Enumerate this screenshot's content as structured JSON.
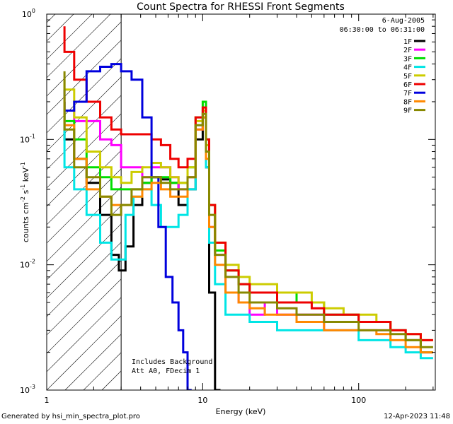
{
  "chart_data": {
    "type": "line",
    "title": "Count Spectra for RHESSI Front Segments",
    "xlabel": "Energy (keV)",
    "ylabel": "counts cm-2 s-1 keV-1",
    "xscale": "log",
    "yscale": "log",
    "xlim": [
      1,
      310
    ],
    "ylim": [
      0.001,
      1
    ],
    "x_ticks": [
      {
        "value": 1,
        "label": "1"
      },
      {
        "value": 10,
        "label": "10"
      },
      {
        "value": 100,
        "label": "100"
      }
    ],
    "y_ticks": [
      {
        "value": 1,
        "base": "10",
        "exp": "0"
      },
      {
        "value": 0.1,
        "base": "10",
        "exp": "-1"
      },
      {
        "value": 0.01,
        "base": "10",
        "exp": "-2"
      },
      {
        "value": 0.001,
        "base": "10",
        "exp": "-3"
      }
    ],
    "date": "6-Aug-2005",
    "time_range": "06:30:00 to 06:31:00",
    "hatched_region_xmax": 3,
    "notes": [
      "Includes Background",
      "Att A0, FDecim 1"
    ],
    "series": [
      {
        "name": "1F",
        "color": "#000000",
        "values": [
          [
            1.3,
            0.2
          ],
          [
            1.5,
            0.1
          ],
          [
            1.8,
            0.07
          ],
          [
            2.2,
            0.045
          ],
          [
            2.6,
            0.025
          ],
          [
            2.9,
            0.012
          ],
          [
            3.2,
            0.009
          ],
          [
            3.6,
            0.014
          ],
          [
            4.1,
            0.03
          ],
          [
            4.7,
            0.045
          ],
          [
            5.4,
            0.05
          ],
          [
            6.2,
            0.048
          ],
          [
            7,
            0.045
          ],
          [
            8,
            0.03
          ],
          [
            9,
            0.04
          ],
          [
            10,
            0.1
          ],
          [
            10.5,
            0.15
          ],
          [
            11,
            0.06
          ],
          [
            12,
            0.006
          ],
          [
            13,
            0.001
          ]
        ]
      },
      {
        "name": "2F",
        "color": "#ff00ff",
        "values": [
          [
            1.3,
            0.2
          ],
          [
            1.5,
            0.17
          ],
          [
            1.8,
            0.14
          ],
          [
            2.2,
            0.14
          ],
          [
            2.6,
            0.1
          ],
          [
            3,
            0.09
          ],
          [
            3.5,
            0.06
          ],
          [
            4.1,
            0.06
          ],
          [
            4.7,
            0.05
          ],
          [
            5.4,
            0.06
          ],
          [
            6.2,
            0.06
          ],
          [
            7,
            0.05
          ],
          [
            8,
            0.04
          ],
          [
            9,
            0.05
          ],
          [
            10,
            0.12
          ],
          [
            10.5,
            0.16
          ],
          [
            11,
            0.08
          ],
          [
            12,
            0.02
          ],
          [
            14,
            0.012
          ],
          [
            17,
            0.006
          ],
          [
            20,
            0.005
          ],
          [
            25,
            0.004
          ],
          [
            30,
            0.005
          ],
          [
            40,
            0.004
          ],
          [
            50,
            0.004
          ],
          [
            60,
            0.004
          ],
          [
            80,
            0.003
          ],
          [
            100,
            0.003
          ],
          [
            130,
            0.003
          ],
          [
            160,
            0.003
          ],
          [
            200,
            0.003
          ],
          [
            250,
            0.0025
          ],
          [
            300,
            0.002
          ]
        ]
      },
      {
        "name": "3F",
        "color": "#00dd00",
        "values": [
          [
            1.3,
            0.2
          ],
          [
            1.5,
            0.14
          ],
          [
            1.8,
            0.1
          ],
          [
            2.2,
            0.06
          ],
          [
            2.6,
            0.05
          ],
          [
            3,
            0.04
          ],
          [
            3.5,
            0.04
          ],
          [
            4.1,
            0.04
          ],
          [
            4.7,
            0.045
          ],
          [
            5.4,
            0.05
          ],
          [
            6.2,
            0.05
          ],
          [
            7,
            0.045
          ],
          [
            8,
            0.045
          ],
          [
            9,
            0.06
          ],
          [
            10,
            0.15
          ],
          [
            10.5,
            0.2
          ],
          [
            11,
            0.1
          ],
          [
            12,
            0.03
          ],
          [
            14,
            0.013
          ],
          [
            17,
            0.009
          ],
          [
            20,
            0.007
          ],
          [
            25,
            0.006
          ],
          [
            30,
            0.006
          ],
          [
            40,
            0.006
          ],
          [
            50,
            0.005
          ],
          [
            60,
            0.005
          ],
          [
            80,
            0.004
          ],
          [
            100,
            0.004
          ],
          [
            130,
            0.0035
          ],
          [
            160,
            0.0035
          ],
          [
            200,
            0.003
          ],
          [
            250,
            0.0025
          ],
          [
            300,
            0.002
          ]
        ]
      },
      {
        "name": "4F",
        "color": "#00e5e5",
        "values": [
          [
            1.3,
            0.17
          ],
          [
            1.5,
            0.06
          ],
          [
            1.8,
            0.04
          ],
          [
            2.2,
            0.025
          ],
          [
            2.6,
            0.015
          ],
          [
            2.9,
            0.011
          ],
          [
            3.2,
            0.011
          ],
          [
            3.6,
            0.025
          ],
          [
            4.1,
            0.035
          ],
          [
            4.7,
            0.04
          ],
          [
            5.4,
            0.03
          ],
          [
            6.2,
            0.02
          ],
          [
            7,
            0.02
          ],
          [
            8,
            0.025
          ],
          [
            9,
            0.04
          ],
          [
            10,
            0.13
          ],
          [
            10.5,
            0.15
          ],
          [
            11,
            0.06
          ],
          [
            12,
            0.015
          ],
          [
            14,
            0.007
          ],
          [
            17,
            0.004
          ],
          [
            20,
            0.004
          ],
          [
            25,
            0.0035
          ],
          [
            30,
            0.0035
          ],
          [
            40,
            0.003
          ],
          [
            50,
            0.003
          ],
          [
            60,
            0.003
          ],
          [
            80,
            0.003
          ],
          [
            100,
            0.003
          ],
          [
            130,
            0.0025
          ],
          [
            160,
            0.0025
          ],
          [
            200,
            0.0022
          ],
          [
            250,
            0.002
          ],
          [
            300,
            0.0018
          ]
        ]
      },
      {
        "name": "5F",
        "color": "#cccc00",
        "values": [
          [
            1.3,
            0.3
          ],
          [
            1.5,
            0.25
          ],
          [
            1.8,
            0.15
          ],
          [
            2.2,
            0.08
          ],
          [
            2.6,
            0.06
          ],
          [
            3,
            0.05
          ],
          [
            3.5,
            0.045
          ],
          [
            4.1,
            0.055
          ],
          [
            4.7,
            0.06
          ],
          [
            5.4,
            0.065
          ],
          [
            6.2,
            0.06
          ],
          [
            7,
            0.05
          ],
          [
            8,
            0.045
          ],
          [
            9,
            0.06
          ],
          [
            10,
            0.14
          ],
          [
            10.5,
            0.17
          ],
          [
            11,
            0.09
          ],
          [
            12,
            0.03
          ],
          [
            14,
            0.015
          ],
          [
            17,
            0.01
          ],
          [
            20,
            0.008
          ],
          [
            25,
            0.007
          ],
          [
            30,
            0.007
          ],
          [
            40,
            0.006
          ],
          [
            50,
            0.006
          ],
          [
            60,
            0.005
          ],
          [
            80,
            0.0045
          ],
          [
            100,
            0.004
          ],
          [
            130,
            0.004
          ],
          [
            160,
            0.0035
          ],
          [
            200,
            0.003
          ],
          [
            250,
            0.0028
          ],
          [
            300,
            0.0025
          ]
        ]
      },
      {
        "name": "6F",
        "color": "#ee0000",
        "values": [
          [
            1.3,
            0.8
          ],
          [
            1.5,
            0.5
          ],
          [
            1.8,
            0.3
          ],
          [
            2.2,
            0.2
          ],
          [
            2.6,
            0.15
          ],
          [
            3,
            0.12
          ],
          [
            3.5,
            0.11
          ],
          [
            4.1,
            0.11
          ],
          [
            4.7,
            0.11
          ],
          [
            5.4,
            0.1
          ],
          [
            6.2,
            0.09
          ],
          [
            7,
            0.07
          ],
          [
            8,
            0.06
          ],
          [
            9,
            0.07
          ],
          [
            10,
            0.15
          ],
          [
            10.5,
            0.18
          ],
          [
            11,
            0.1
          ],
          [
            12,
            0.03
          ],
          [
            14,
            0.015
          ],
          [
            17,
            0.009
          ],
          [
            20,
            0.007
          ],
          [
            25,
            0.006
          ],
          [
            30,
            0.006
          ],
          [
            40,
            0.005
          ],
          [
            50,
            0.005
          ],
          [
            60,
            0.0045
          ],
          [
            80,
            0.004
          ],
          [
            100,
            0.004
          ],
          [
            130,
            0.0035
          ],
          [
            160,
            0.0035
          ],
          [
            200,
            0.003
          ],
          [
            250,
            0.0028
          ],
          [
            300,
            0.0025
          ]
        ]
      },
      {
        "name": "7F",
        "color": "#0000dd",
        "values": [
          [
            1.3,
            0.25
          ],
          [
            1.5,
            0.17
          ],
          [
            1.8,
            0.2
          ],
          [
            2.2,
            0.35
          ],
          [
            2.6,
            0.38
          ],
          [
            3,
            0.4
          ],
          [
            3.5,
            0.35
          ],
          [
            4.1,
            0.3
          ],
          [
            4.7,
            0.15
          ],
          [
            5.2,
            0.05
          ],
          [
            5.8,
            0.02
          ],
          [
            6.4,
            0.008
          ],
          [
            7,
            0.005
          ],
          [
            7.5,
            0.003
          ],
          [
            8,
            0.002
          ],
          [
            8.5,
            0.001
          ]
        ]
      },
      {
        "name": "8F",
        "color": "#ff8800",
        "values": [
          [
            1.3,
            0.22
          ],
          [
            1.5,
            0.13
          ],
          [
            1.8,
            0.07
          ],
          [
            2.2,
            0.04
          ],
          [
            2.6,
            0.035
          ],
          [
            3,
            0.03
          ],
          [
            3.5,
            0.03
          ],
          [
            4.1,
            0.035
          ],
          [
            4.7,
            0.04
          ],
          [
            5.4,
            0.045
          ],
          [
            6.2,
            0.04
          ],
          [
            7,
            0.035
          ],
          [
            8,
            0.035
          ],
          [
            9,
            0.05
          ],
          [
            10,
            0.12
          ],
          [
            10.5,
            0.15
          ],
          [
            11,
            0.07
          ],
          [
            12,
            0.02
          ],
          [
            14,
            0.01
          ],
          [
            17,
            0.006
          ],
          [
            20,
            0.005
          ],
          [
            25,
            0.0045
          ],
          [
            30,
            0.004
          ],
          [
            40,
            0.004
          ],
          [
            50,
            0.0035
          ],
          [
            60,
            0.0035
          ],
          [
            80,
            0.003
          ],
          [
            100,
            0.003
          ],
          [
            130,
            0.003
          ],
          [
            160,
            0.0028
          ],
          [
            200,
            0.0025
          ],
          [
            250,
            0.0022
          ],
          [
            300,
            0.002
          ]
        ]
      },
      {
        "name": "9F",
        "color": "#888800",
        "values": [
          [
            1.3,
            0.35
          ],
          [
            1.5,
            0.12
          ],
          [
            1.8,
            0.06
          ],
          [
            2.2,
            0.05
          ],
          [
            2.6,
            0.035
          ],
          [
            3,
            0.025
          ],
          [
            3.5,
            0.03
          ],
          [
            4.1,
            0.04
          ],
          [
            4.7,
            0.05
          ],
          [
            5.4,
            0.05
          ],
          [
            6.2,
            0.045
          ],
          [
            7,
            0.04
          ],
          [
            8,
            0.04
          ],
          [
            9,
            0.05
          ],
          [
            10,
            0.13
          ],
          [
            10.5,
            0.16
          ],
          [
            11,
            0.08
          ],
          [
            12,
            0.025
          ],
          [
            14,
            0.012
          ],
          [
            17,
            0.008
          ],
          [
            20,
            0.006
          ],
          [
            25,
            0.005
          ],
          [
            30,
            0.005
          ],
          [
            40,
            0.0045
          ],
          [
            50,
            0.004
          ],
          [
            60,
            0.004
          ],
          [
            80,
            0.0035
          ],
          [
            100,
            0.0035
          ],
          [
            130,
            0.003
          ],
          [
            160,
            0.003
          ],
          [
            200,
            0.0028
          ],
          [
            250,
            0.0025
          ],
          [
            300,
            0.0022
          ]
        ]
      }
    ]
  },
  "footer": {
    "generated_by": "Generated by hsi_min_spectra_plot.pro",
    "timestamp": "12-Apr-2023 11:48"
  }
}
